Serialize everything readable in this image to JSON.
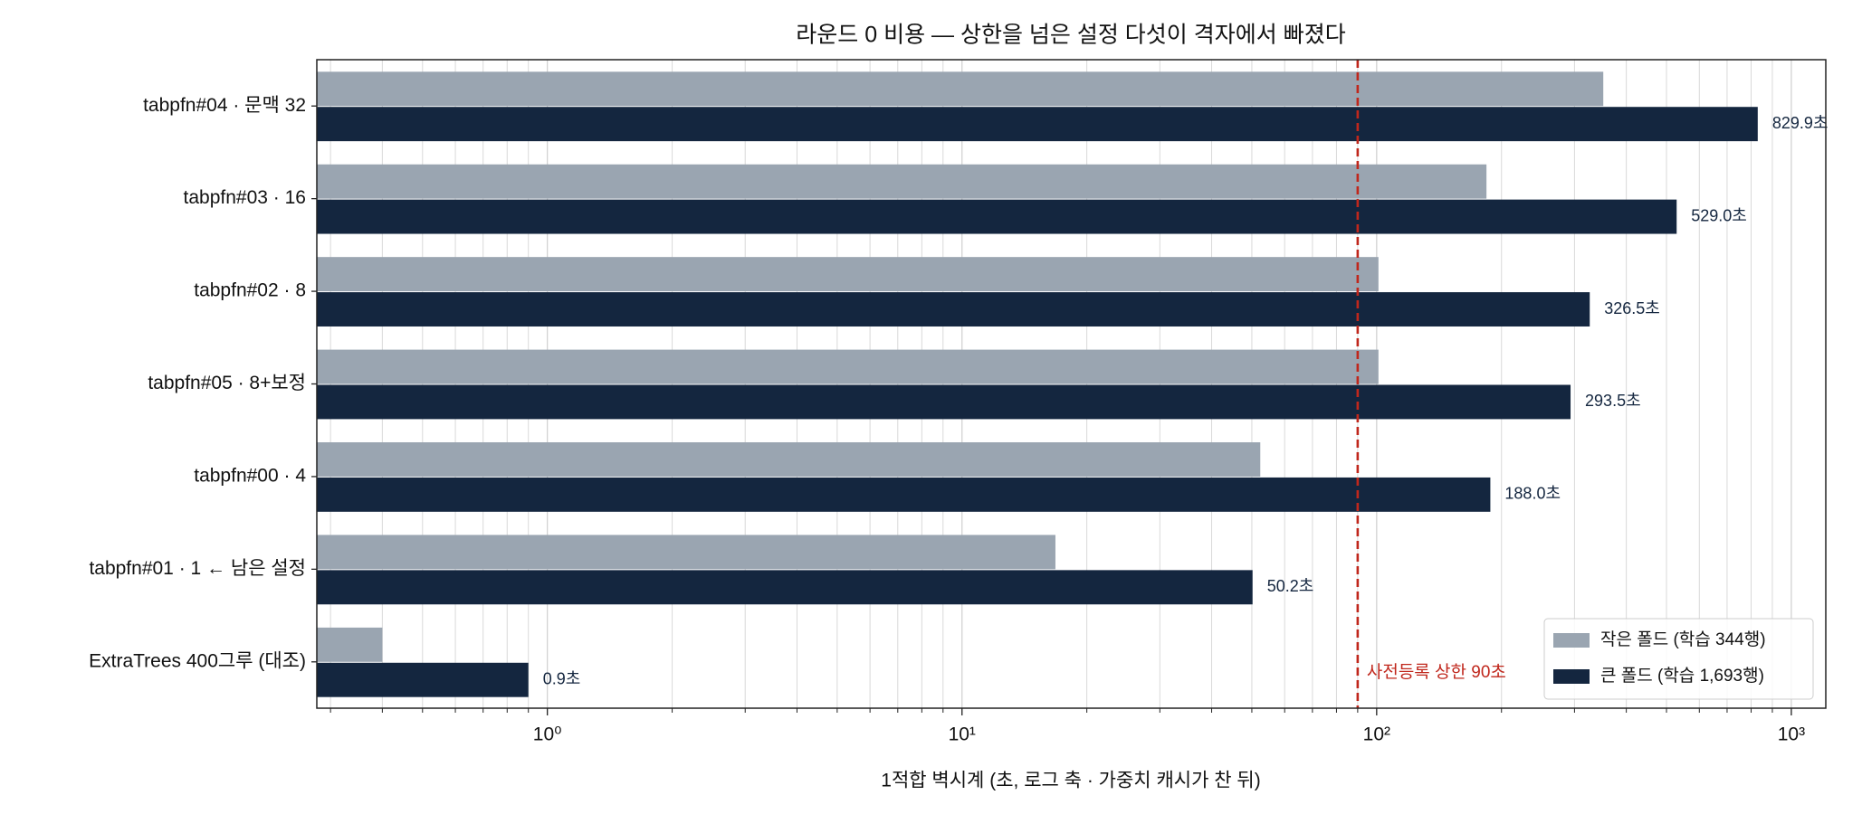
{
  "chart_data": {
    "type": "barh",
    "title": "라운드 0 비용 — 상한을 넘은 설정 다섯이 격자에서 빠졌다",
    "xlabel": "1적합 벽시계 (초, 로그 축 · 가중치 캐시가 찬 뒤)",
    "categories": [
      "tabpfn#04 · 문맥 32",
      "tabpfn#03 · 16",
      "tabpfn#02 · 8",
      "tabpfn#05 · 8+보정",
      "tabpfn#00 · 4",
      "tabpfn#01 · 1 ← 남은 설정",
      "ExtraTrees 400그루 (대조)"
    ],
    "series": [
      {
        "name": "작은 폴드 (학습 344행)",
        "color": "#9aa5b1",
        "values": [
          352,
          184,
          101,
          101,
          52.4,
          16.8,
          0.4
        ]
      },
      {
        "name": "큰 폴드 (학습 1,693행)",
        "color": "#14263f",
        "values": [
          829.9,
          529.0,
          326.5,
          293.5,
          188.0,
          50.2,
          0.9
        ],
        "value_labels": [
          "829.9초",
          "529.0초",
          "326.5초",
          "293.5초",
          "188.0초",
          "50.2초",
          "0.9초"
        ]
      }
    ],
    "x_scale": "log",
    "xlim": [
      0.278,
      1211
    ],
    "xticks": [
      {
        "value": 1,
        "label": "10⁰"
      },
      {
        "value": 10,
        "label": "10¹"
      },
      {
        "value": 100,
        "label": "10²"
      },
      {
        "value": 1000,
        "label": "10³"
      }
    ],
    "xticks_minor": [
      0.3,
      0.4,
      0.5,
      0.6,
      0.7,
      0.8,
      0.9,
      2,
      3,
      4,
      5,
      6,
      7,
      8,
      9,
      20,
      30,
      40,
      50,
      60,
      70,
      80,
      90,
      200,
      300,
      400,
      500,
      600,
      700,
      800,
      900
    ],
    "grid": true,
    "threshold": {
      "value": 90,
      "label": "사전등록 상한 90초",
      "color": "#c0271c"
    },
    "legend": "lower right"
  }
}
